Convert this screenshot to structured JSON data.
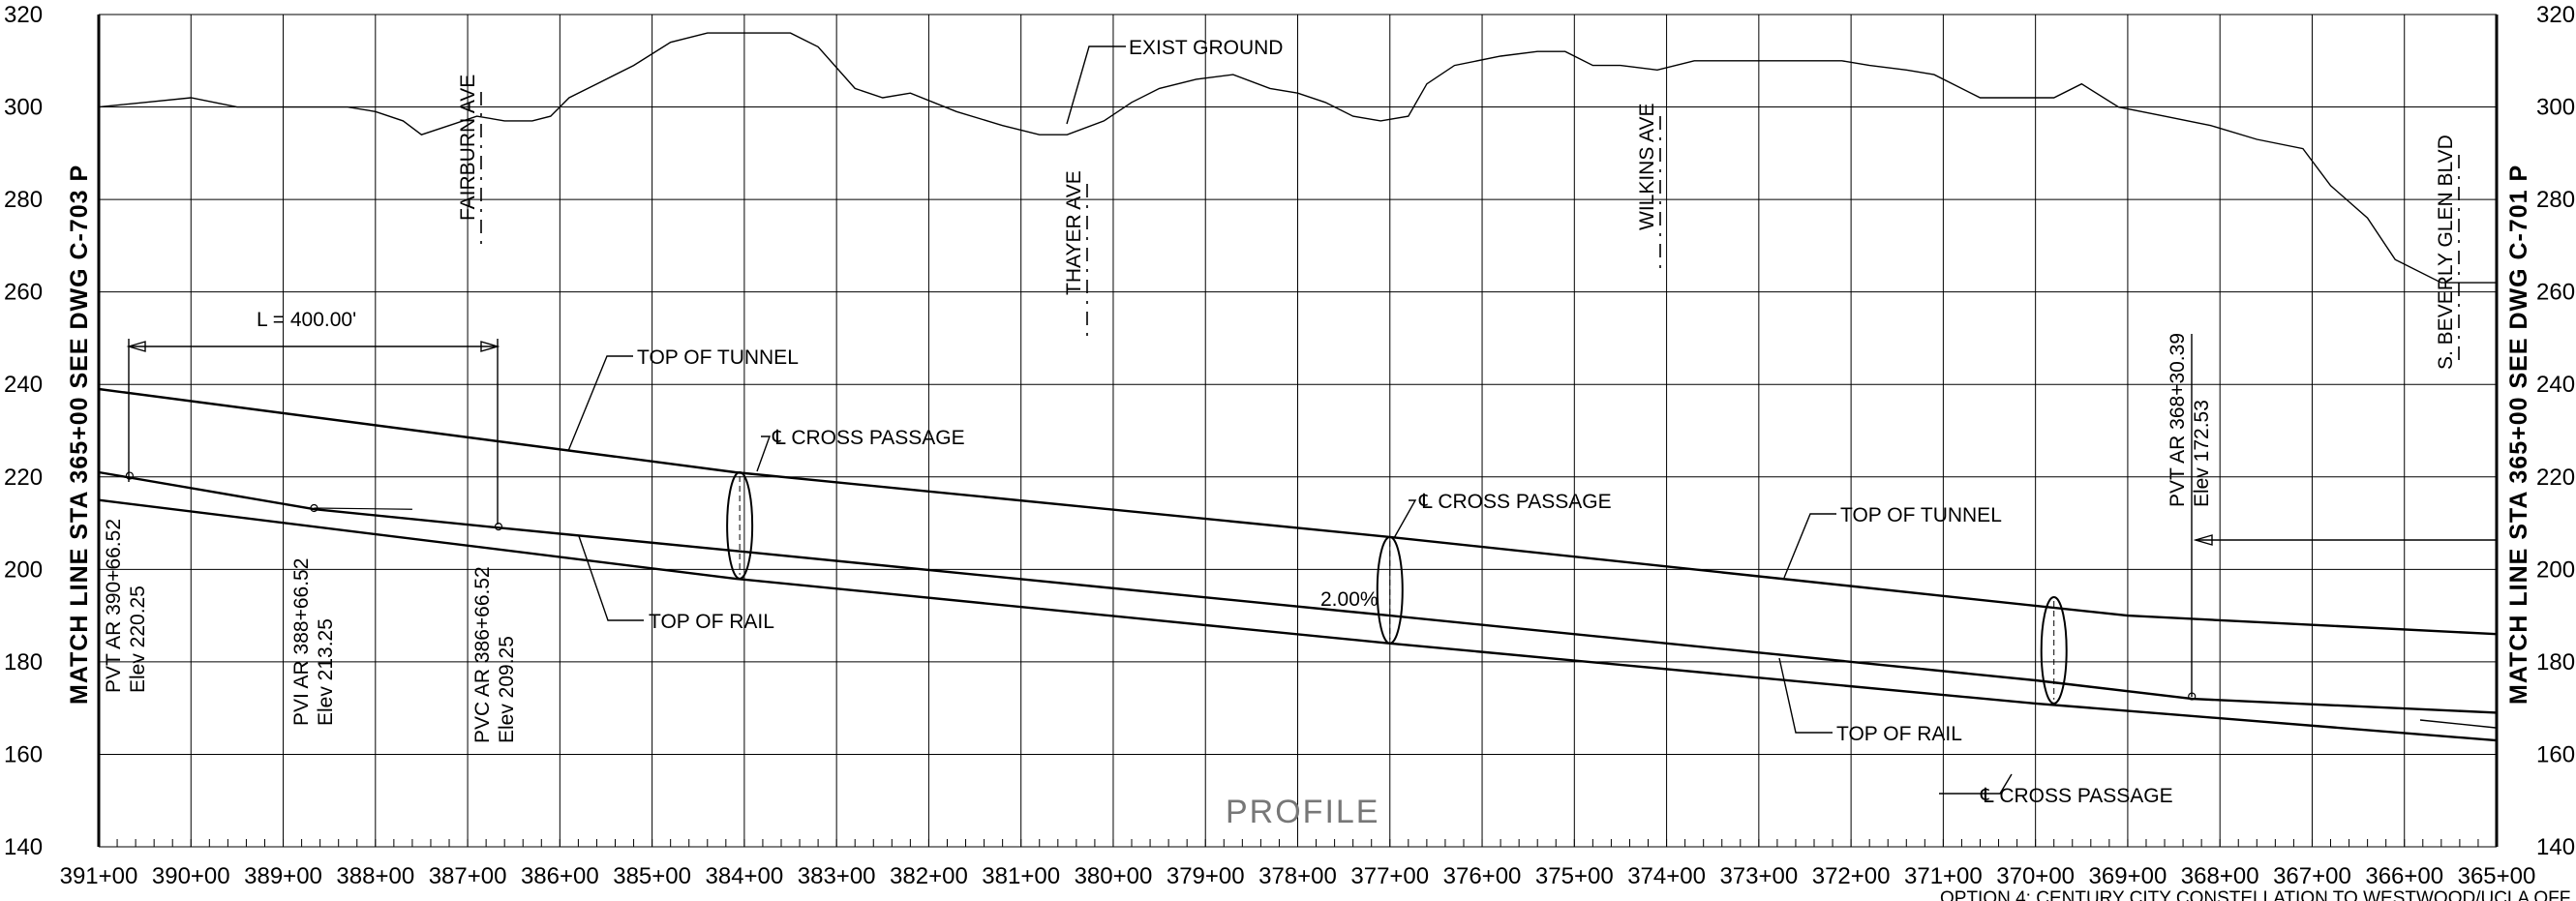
{
  "title": "PROFILE",
  "footer_note": "OPTION 4: CENTURY CITY CONSTELLATION TO WESTWOOD/UCLA OFF",
  "match_left": "MATCH LINE STA 365+00 SEE DWG C-703 P",
  "match_right": "MATCH LINE STA 365+00 SEE DWG C-701 P",
  "y_ticks": [
    "140",
    "160",
    "180",
    "200",
    "220",
    "240",
    "260",
    "280",
    "300",
    "320"
  ],
  "x_ticks": [
    "391+00",
    "390+00",
    "389+00",
    "388+00",
    "387+00",
    "386+00",
    "385+00",
    "384+00",
    "383+00",
    "382+00",
    "381+00",
    "380+00",
    "379+00",
    "378+00",
    "377+00",
    "376+00",
    "375+00",
    "374+00",
    "373+00",
    "372+00",
    "371+00",
    "370+00",
    "369+00",
    "368+00",
    "367+00",
    "366+00",
    "365+00"
  ],
  "streets": {
    "fairburn": "FAIRBURN AVE",
    "thayer": "THAYER AVE",
    "wilkins": "WILKINS AVE",
    "beverly": "S. BEVERLY GLEN BLVD"
  },
  "labels": {
    "exist_ground": "EXIST GROUND",
    "top_tunnel_1": "TOP OF TUNNEL",
    "top_tunnel_2": "TOP OF TUNNEL",
    "top_rail_1": "TOP OF RAIL",
    "top_rail_2": "TOP OF RAIL",
    "cross_1": "℄ CROSS PASSAGE",
    "cross_2": "℄ CROSS PASSAGE",
    "cross_3": "℄ CROSS PASSAGE",
    "grade": "2.00%",
    "curve_length": "L = 400.00'"
  },
  "points": {
    "pvt1_sta": "PVT AR 390+66.52",
    "pvt1_elev": "Elev 220.25",
    "pvi_sta": "PVI AR 388+66.52",
    "pvi_elev": "Elev 213.25",
    "pvc_sta": "PVC AR 386+66.52",
    "pvc_elev": "Elev 209.25",
    "pvt2_sta": "PVT AR 368+30.39",
    "pvt2_elev": "Elev 172.53"
  },
  "chart_data": {
    "type": "line",
    "x_axis": "station",
    "x_reversed": true,
    "xlim": [
      391,
      365
    ],
    "ylim": [
      140,
      320
    ],
    "grid": true,
    "series": [
      {
        "name": "EXIST GROUND",
        "x": [
          391,
          390.5,
          390,
          389.5,
          389,
          388.6,
          388.3,
          388.0,
          387.7,
          387.5,
          387.2,
          386.9,
          386.6,
          386.3,
          386.1,
          385.9,
          385.6,
          385.2,
          384.8,
          384.4,
          384.1,
          383.8,
          383.5,
          383.2,
          382.8,
          382.5,
          382.2,
          381.7,
          381.2,
          380.8,
          380.5,
          380.1,
          379.8,
          379.5,
          379.1,
          378.7,
          378.3,
          378.0,
          377.7,
          377.4,
          377.1,
          376.8,
          376.6,
          376.3,
          375.8,
          375.4,
          375.1,
          374.8,
          374.5,
          374.1,
          373.7,
          373.3,
          372.9,
          372.5,
          372.1,
          371.8,
          371.4,
          371.1,
          370.6,
          370.2,
          369.8,
          369.5,
          369.1,
          368.6,
          368.1,
          367.6,
          367.1,
          366.8,
          366.4,
          366.1,
          365.6,
          365
        ],
        "y": [
          300,
          301,
          302,
          300,
          300,
          300,
          300,
          299,
          297,
          294,
          296,
          298,
          297,
          297,
          298,
          302,
          305,
          309,
          314,
          316,
          316,
          316,
          316,
          313,
          304,
          302,
          303,
          299,
          296,
          294,
          294,
          297,
          301,
          304,
          306,
          307,
          304,
          303,
          301,
          298,
          297,
          298,
          305,
          309,
          311,
          312,
          312,
          309,
          309,
          308,
          310,
          310,
          310,
          310,
          310,
          309,
          308,
          307,
          302,
          302,
          302,
          305,
          300,
          298,
          296,
          293,
          291,
          283,
          276,
          267,
          262,
          262
        ]
      },
      {
        "name": "TOP OF TUNNEL",
        "x": [
          391,
          384.1,
          377,
          369,
          365
        ],
        "y": [
          239,
          221,
          207,
          190,
          186
        ]
      },
      {
        "name": "TOP OF RAIL",
        "x": [
          391,
          388.66,
          386.66,
          384.1,
          377,
          370,
          368.3,
          365
        ],
        "y": [
          221,
          213,
          209,
          204,
          190,
          176,
          172,
          169
        ]
      },
      {
        "name": "TUNNEL INVERT",
        "x": [
          391,
          384.1,
          377,
          370,
          365
        ],
        "y": [
          215,
          198,
          184,
          171,
          163
        ]
      }
    ],
    "cross_passages": [
      {
        "station": 384.05,
        "elev_top": 221,
        "elev_bottom": 198
      },
      {
        "station": 377.0,
        "elev_top": 207,
        "elev_bottom": 184
      },
      {
        "station": 369.8,
        "elev_top": 194,
        "elev_bottom": 171
      }
    ],
    "pvi_points": [
      {
        "label": "PVT AR 390+66.52",
        "station": 390.6652,
        "elev": 220.25
      },
      {
        "label": "PVI AR 388+66.52",
        "station": 388.6652,
        "elev": 213.25
      },
      {
        "label": "PVC AR 386+66.52",
        "station": 386.6652,
        "elev": 209.25
      },
      {
        "label": "PVT AR 368+30.39",
        "station": 368.3039,
        "elev": 172.53
      }
    ]
  }
}
